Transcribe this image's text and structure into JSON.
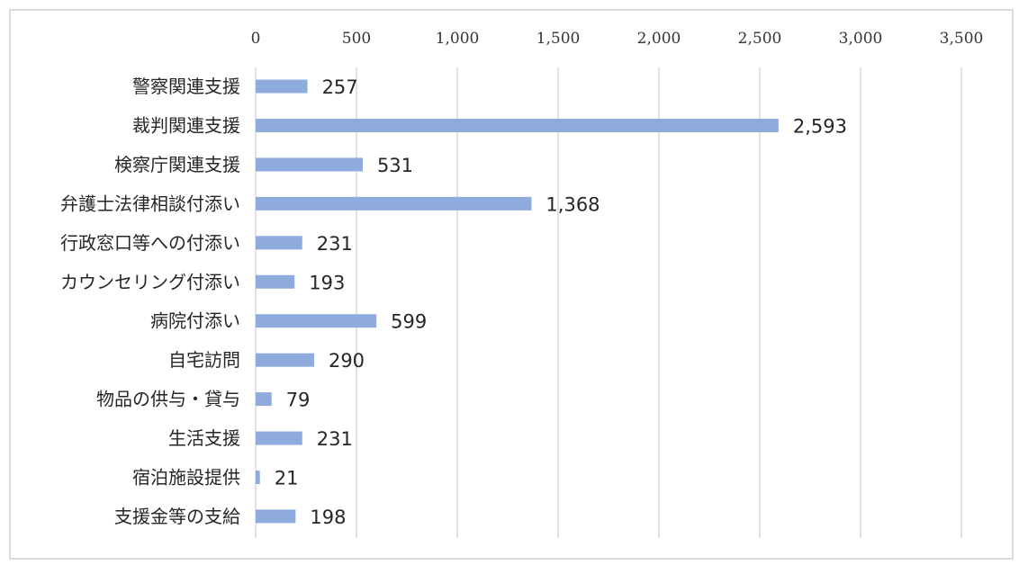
{
  "chart_data": {
    "type": "bar",
    "orientation": "horizontal",
    "categories": [
      "警察関連支援",
      "裁判関連支援",
      "検察庁関連支援",
      "弁護士法律相談付添い",
      "行政窓口等への付添い",
      "カウンセリング付添い",
      "病院付添い",
      "自宅訪問",
      "物品の供与・貸与",
      "生活支援",
      "宿泊施設提供",
      "支援金等の支給"
    ],
    "values": [
      257,
      2593,
      531,
      1368,
      231,
      193,
      599,
      290,
      79,
      231,
      21,
      198
    ],
    "value_labels": [
      "257",
      "2,593",
      "531",
      "1,368",
      "231",
      "193",
      "599",
      "290",
      "79",
      "231",
      "21",
      "198"
    ],
    "xlim": [
      0,
      3500
    ],
    "xticks": [
      0,
      500,
      1000,
      1500,
      2000,
      2500,
      3000,
      3500
    ],
    "xtick_labels": [
      "0",
      "500",
      "1,000",
      "1,500",
      "2,000",
      "2,500",
      "3,000",
      "3,500"
    ],
    "xaxis_position": "top",
    "grid": true,
    "legend": "none",
    "colors": {
      "bar": "#8faadc",
      "grid": "#d9d9d9",
      "border": "#d9d9d9",
      "text": "#262626"
    }
  }
}
